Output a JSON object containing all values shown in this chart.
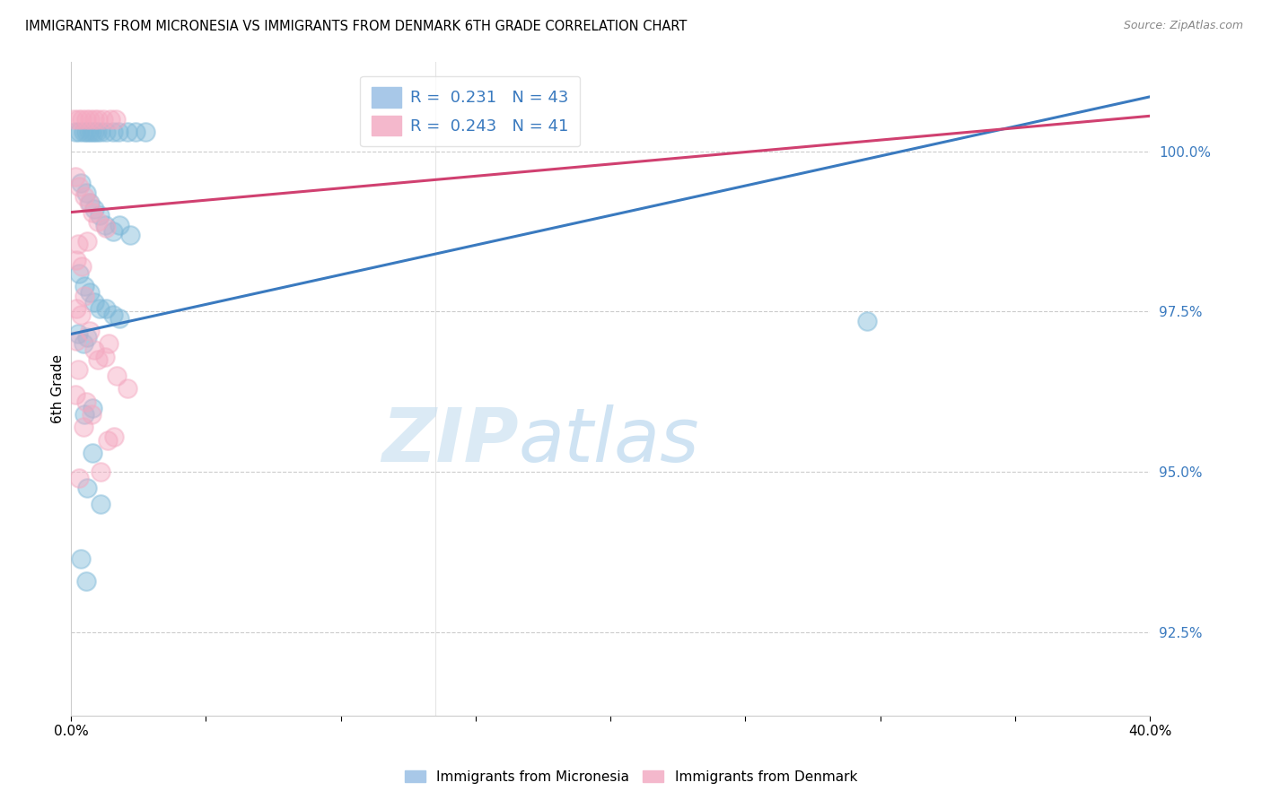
{
  "title": "IMMIGRANTS FROM MICRONESIA VS IMMIGRANTS FROM DENMARK 6TH GRADE CORRELATION CHART",
  "source": "Source: ZipAtlas.com",
  "ylabel": "6th Grade",
  "ytick_labels": [
    "92.5%",
    "95.0%",
    "97.5%",
    "100.0%"
  ],
  "ytick_values": [
    92.5,
    95.0,
    97.5,
    100.0
  ],
  "xlim": [
    0.0,
    40.0
  ],
  "ylim": [
    91.2,
    101.4
  ],
  "watermark_zip": "ZIP",
  "watermark_atlas": "atlas",
  "blue_color": "#7db8d8",
  "pink_color": "#f4a8c0",
  "blue_line_color": "#3a7abf",
  "pink_line_color": "#d04070",
  "blue_line": {
    "x0": 0,
    "y0": 97.15,
    "x1": 40,
    "y1": 100.85
  },
  "pink_line": {
    "x0": 0,
    "y0": 99.05,
    "x1": 40,
    "y1": 100.55
  },
  "legend_blue": "R =  0.231   N = 43",
  "legend_pink": "R =  0.243   N = 41",
  "micronesia_points": [
    [
      0.15,
      100.3
    ],
    [
      0.3,
      100.3
    ],
    [
      0.45,
      100.3
    ],
    [
      0.55,
      100.3
    ],
    [
      0.65,
      100.3
    ],
    [
      0.75,
      100.3
    ],
    [
      0.85,
      100.3
    ],
    [
      0.95,
      100.3
    ],
    [
      1.1,
      100.3
    ],
    [
      1.3,
      100.3
    ],
    [
      1.55,
      100.3
    ],
    [
      1.75,
      100.3
    ],
    [
      2.1,
      100.3
    ],
    [
      2.4,
      100.3
    ],
    [
      2.75,
      100.3
    ],
    [
      0.35,
      99.5
    ],
    [
      0.55,
      99.35
    ],
    [
      0.7,
      99.2
    ],
    [
      0.85,
      99.1
    ],
    [
      1.05,
      99.0
    ],
    [
      1.25,
      98.85
    ],
    [
      1.55,
      98.75
    ],
    [
      1.8,
      98.85
    ],
    [
      2.2,
      98.7
    ],
    [
      0.3,
      98.1
    ],
    [
      0.5,
      97.9
    ],
    [
      0.7,
      97.8
    ],
    [
      0.85,
      97.65
    ],
    [
      1.05,
      97.55
    ],
    [
      1.3,
      97.55
    ],
    [
      1.55,
      97.45
    ],
    [
      1.8,
      97.4
    ],
    [
      0.25,
      97.15
    ],
    [
      0.45,
      97.0
    ],
    [
      0.6,
      97.1
    ],
    [
      0.5,
      95.9
    ],
    [
      0.8,
      96.0
    ],
    [
      0.8,
      95.3
    ],
    [
      0.6,
      94.75
    ],
    [
      1.1,
      94.5
    ],
    [
      0.35,
      93.65
    ],
    [
      0.55,
      93.3
    ],
    [
      29.5,
      97.35
    ]
  ],
  "denmark_points": [
    [
      0.1,
      100.5
    ],
    [
      0.25,
      100.5
    ],
    [
      0.4,
      100.5
    ],
    [
      0.55,
      100.5
    ],
    [
      0.7,
      100.5
    ],
    [
      0.85,
      100.5
    ],
    [
      1.0,
      100.5
    ],
    [
      1.2,
      100.5
    ],
    [
      1.45,
      100.5
    ],
    [
      1.65,
      100.5
    ],
    [
      0.15,
      99.6
    ],
    [
      0.3,
      99.45
    ],
    [
      0.5,
      99.3
    ],
    [
      0.65,
      99.2
    ],
    [
      0.8,
      99.05
    ],
    [
      1.0,
      98.9
    ],
    [
      1.3,
      98.8
    ],
    [
      0.2,
      98.3
    ],
    [
      0.4,
      98.2
    ],
    [
      0.2,
      97.55
    ],
    [
      0.35,
      97.45
    ],
    [
      0.18,
      97.05
    ],
    [
      0.25,
      96.6
    ],
    [
      1.25,
      96.8
    ],
    [
      0.15,
      96.2
    ],
    [
      0.45,
      95.7
    ],
    [
      1.6,
      95.55
    ],
    [
      0.3,
      94.9
    ],
    [
      1.1,
      95.0
    ],
    [
      0.25,
      98.55
    ],
    [
      0.6,
      98.6
    ],
    [
      0.5,
      97.75
    ],
    [
      0.7,
      97.2
    ],
    [
      0.85,
      96.9
    ],
    [
      1.0,
      96.75
    ],
    [
      1.4,
      97.0
    ],
    [
      1.7,
      96.5
    ],
    [
      2.1,
      96.3
    ],
    [
      0.55,
      96.1
    ],
    [
      0.75,
      95.9
    ],
    [
      1.35,
      95.5
    ]
  ]
}
